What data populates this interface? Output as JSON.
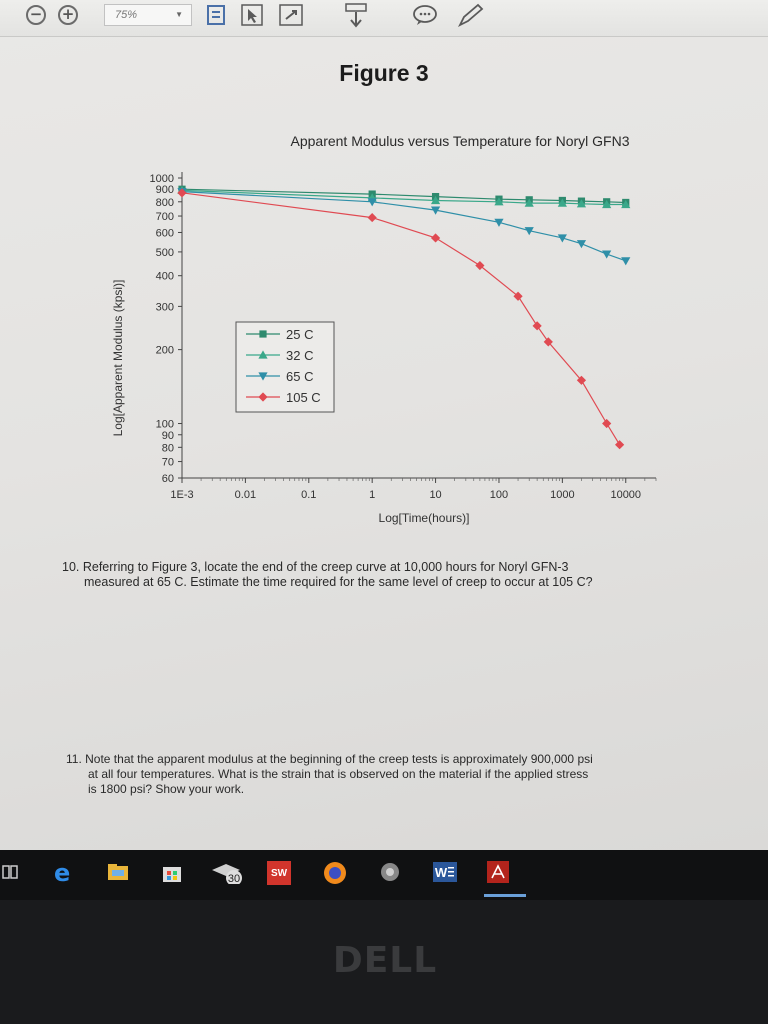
{
  "toolbar": {
    "zoom": "75%",
    "icons": [
      "zoom-out-icon",
      "zoom-in-icon",
      "fit-page-icon",
      "select-icon",
      "fit-width-icon",
      "tools-icon",
      "download-icon",
      "comment-icon",
      "pen-icon"
    ]
  },
  "document": {
    "figure_title": "Figure 3",
    "question_10": "10. Referring to Figure 3, locate the end of the creep curve at 10,000 hours for Noryl GFN-3 measured at 65 C. Estimate the time required for the same level of creep to occur at 105 C?",
    "question_10_lines": [
      "10. Referring to Figure 3, locate the end of the creep curve at 10,000 hours for Noryl GFN-3",
      "measured at 65 C. Estimate the time required for the same level of creep to occur at 105 C?"
    ],
    "question_11_lines": [
      "11. Note that the apparent modulus at the beginning of the creep tests is approximately 900,000 psi",
      "at all four temperatures. What is the strain that is observed on the material if the applied stress",
      "is 1800 psi? Show your work."
    ]
  },
  "chart_data": {
    "type": "line",
    "title": "Apparent Modulus versus Temperature for Noryl GFN3",
    "xlabel": "Log[Time(hours)]",
    "ylabel": "Log[Apparent Modulus (kpsi)]",
    "x_scale": "log",
    "y_scale": "log",
    "xlim": [
      0.001,
      30000
    ],
    "ylim": [
      60,
      1000
    ],
    "x_ticks": [
      "1E-3",
      "0.01",
      "0.1",
      "1",
      "10",
      "100",
      "1000",
      "10000"
    ],
    "x_tick_values": [
      0.001,
      0.01,
      0.1,
      1,
      10,
      100,
      1000,
      10000
    ],
    "y_ticks": [
      "1000",
      "900",
      "800",
      "700",
      "600",
      "500",
      "400",
      "300",
      "200",
      "100",
      "90",
      "80",
      "70",
      "60"
    ],
    "y_tick_values": [
      1000,
      900,
      800,
      700,
      600,
      500,
      400,
      300,
      200,
      100,
      90,
      80,
      70,
      60
    ],
    "legend_position": "center-left",
    "grid": false,
    "series": [
      {
        "name": "25 C",
        "marker": "square",
        "color": "#2e8a6e",
        "points": [
          [
            0.001,
            900
          ],
          [
            1,
            860
          ],
          [
            10,
            840
          ],
          [
            100,
            820
          ],
          [
            300,
            815
          ],
          [
            1000,
            810
          ],
          [
            2000,
            805
          ],
          [
            5000,
            800
          ],
          [
            10000,
            795
          ]
        ]
      },
      {
        "name": "32 C",
        "marker": "triangle-up",
        "color": "#3aa88a",
        "points": [
          [
            0.001,
            890
          ],
          [
            1,
            830
          ],
          [
            10,
            810
          ],
          [
            100,
            800
          ],
          [
            300,
            790
          ],
          [
            1000,
            790
          ],
          [
            2000,
            785
          ],
          [
            5000,
            780
          ],
          [
            10000,
            780
          ]
        ]
      },
      {
        "name": "65 C",
        "marker": "triangle-down",
        "color": "#2f8fa8",
        "points": [
          [
            0.001,
            880
          ],
          [
            1,
            800
          ],
          [
            10,
            740
          ],
          [
            100,
            660
          ],
          [
            300,
            610
          ],
          [
            1000,
            570
          ],
          [
            2000,
            540
          ],
          [
            5000,
            490
          ],
          [
            10000,
            460
          ]
        ]
      },
      {
        "name": "105 C",
        "marker": "diamond",
        "color": "#e04a52",
        "points": [
          [
            0.001,
            870
          ],
          [
            1,
            690
          ],
          [
            10,
            570
          ],
          [
            50,
            440
          ],
          [
            200,
            330
          ],
          [
            400,
            250
          ],
          [
            600,
            215
          ],
          [
            2000,
            150
          ],
          [
            5000,
            100
          ],
          [
            8000,
            82
          ]
        ]
      }
    ]
  },
  "taskbar": {
    "apps": [
      "task-view-icon",
      "edge-icon",
      "file-explorer-icon",
      "store-icon",
      "education-icon",
      "solidworks-icon",
      "firefox-icon",
      "app-icon",
      "word-icon",
      "acrobat-icon"
    ],
    "education_badge": "30",
    "solidworks_label": "SW"
  },
  "bezel": {
    "logo": "DELL"
  }
}
